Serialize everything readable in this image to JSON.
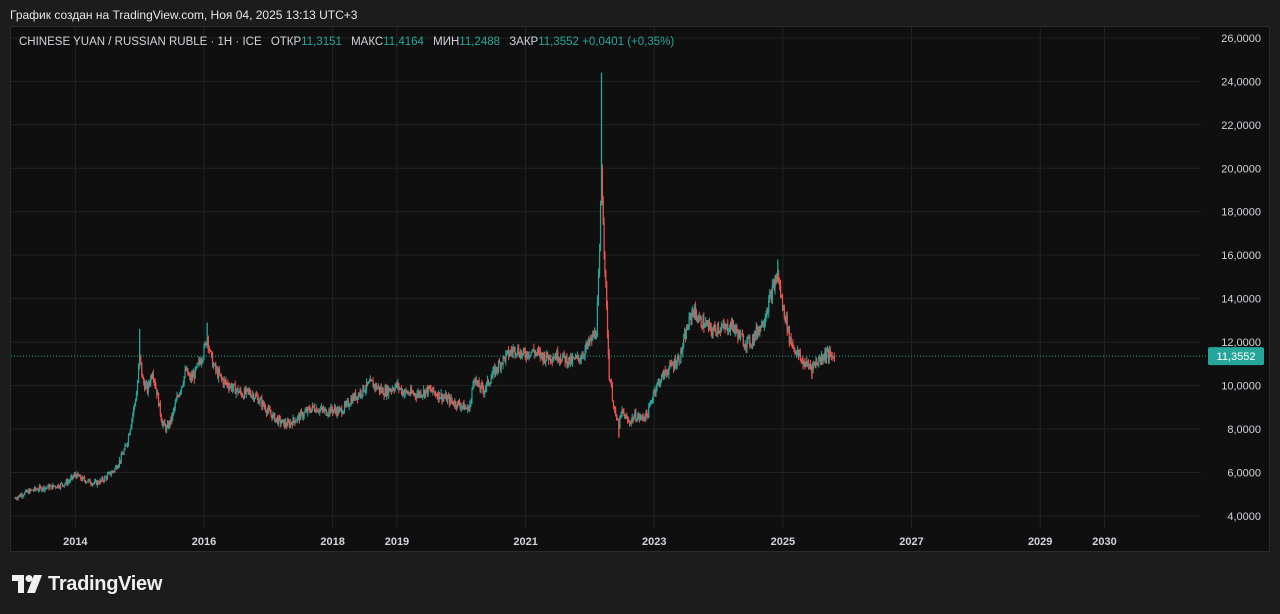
{
  "caption": "График создан на TradingView.com, Ноя 04, 2025 13:13 UTC+3",
  "legend": {
    "symbol": "CHINESE YUAN / RUSSIAN RUBLE · 1Н · ICE",
    "open_label": "ОТКР",
    "open": "11,3151",
    "high_label": "МАКС",
    "high": "11,4164",
    "low_label": "МИН",
    "low": "11,2488",
    "close_label": "ЗАКР",
    "close": "11,3552",
    "change": "+0,0401 (+0,35%)"
  },
  "brand": {
    "name": "TradingView",
    "icon": "tradingview-logo-icon"
  },
  "colors": {
    "background": "#0f0f0f",
    "up": "#26a69a",
    "down": "#ef5350",
    "grid": "#222222",
    "axis_text": "#d1d4dc",
    "price_line": "#26a69a"
  },
  "chart_data": {
    "type": "candlestick",
    "title": "CHINESE YUAN / RUSSIAN RUBLE · 1Н · ICE",
    "xlabel": "",
    "ylabel": "",
    "y_range": [
      3.4,
      26.5
    ],
    "x_range": [
      2013.0,
      2031.5
    ],
    "y_ticks": [
      4,
      6,
      8,
      10,
      12,
      14,
      16,
      18,
      20,
      22,
      24,
      26
    ],
    "y_tick_labels": [
      "4,0000",
      "6,0000",
      "8,0000",
      "10,0000",
      "12,0000",
      "14,0000",
      "16,0000",
      "18,0000",
      "20,0000",
      "22,0000",
      "24,0000",
      "26,0000"
    ],
    "x_ticks": [
      2014,
      2016,
      2018,
      2019,
      2021,
      2023,
      2025,
      2027,
      2029,
      2030
    ],
    "x_tick_labels": [
      "2014",
      "2016",
      "2018",
      "2019",
      "2021",
      "2023",
      "2025",
      "2027",
      "2029",
      "2030"
    ],
    "grid": true,
    "last_price": 11.3552,
    "last_price_label": "11,3552",
    "series": [
      {
        "points": [
          [
            2013.05,
            4.8
          ],
          [
            2013.2,
            5.05
          ],
          [
            2013.35,
            5.2
          ],
          [
            2013.5,
            5.3
          ],
          [
            2013.65,
            5.35
          ],
          [
            2013.8,
            5.45
          ],
          [
            2013.9,
            5.6
          ],
          [
            2014.0,
            5.9
          ],
          [
            2014.1,
            5.7
          ],
          [
            2014.2,
            5.6
          ],
          [
            2014.3,
            5.5
          ],
          [
            2014.4,
            5.6
          ],
          [
            2014.5,
            5.85
          ],
          [
            2014.6,
            6.1
          ],
          [
            2014.7,
            6.6
          ],
          [
            2014.8,
            7.3
          ],
          [
            2014.88,
            8.5
          ],
          [
            2014.95,
            9.6
          ],
          [
            2015.0,
            11.3
          ],
          [
            2015.05,
            10.2
          ],
          [
            2015.12,
            9.8
          ],
          [
            2015.2,
            10.7
          ],
          [
            2015.28,
            9.5
          ],
          [
            2015.35,
            8.3
          ],
          [
            2015.42,
            8.0
          ],
          [
            2015.5,
            8.5
          ],
          [
            2015.58,
            9.4
          ],
          [
            2015.65,
            10.0
          ],
          [
            2015.72,
            10.7
          ],
          [
            2015.78,
            10.3
          ],
          [
            2015.85,
            10.5
          ],
          [
            2015.92,
            11.0
          ],
          [
            2016.0,
            11.6
          ],
          [
            2016.05,
            12.3
          ],
          [
            2016.1,
            11.4
          ],
          [
            2016.15,
            10.9
          ],
          [
            2016.2,
            10.6
          ],
          [
            2016.3,
            10.2
          ],
          [
            2016.4,
            10.0
          ],
          [
            2016.5,
            9.8
          ],
          [
            2016.6,
            9.6
          ],
          [
            2016.7,
            9.7
          ],
          [
            2016.8,
            9.5
          ],
          [
            2016.9,
            9.2
          ],
          [
            2017.0,
            8.8
          ],
          [
            2017.1,
            8.5
          ],
          [
            2017.2,
            8.3
          ],
          [
            2017.3,
            8.2
          ],
          [
            2017.4,
            8.4
          ],
          [
            2017.5,
            8.6
          ],
          [
            2017.6,
            8.8
          ],
          [
            2017.7,
            9.0
          ],
          [
            2017.8,
            8.9
          ],
          [
            2017.9,
            8.8
          ],
          [
            2018.0,
            8.9
          ],
          [
            2018.1,
            8.8
          ],
          [
            2018.2,
            9.0
          ],
          [
            2018.3,
            9.4
          ],
          [
            2018.4,
            9.6
          ],
          [
            2018.5,
            9.9
          ],
          [
            2018.6,
            10.1
          ],
          [
            2018.7,
            9.9
          ],
          [
            2018.8,
            9.7
          ],
          [
            2019.0,
            10.0
          ],
          [
            2019.1,
            9.7
          ],
          [
            2019.3,
            9.6
          ],
          [
            2019.5,
            9.8
          ],
          [
            2019.7,
            9.5
          ],
          [
            2019.9,
            9.2
          ],
          [
            2020.0,
            9.1
          ],
          [
            2020.1,
            8.9
          ],
          [
            2020.15,
            9.3
          ],
          [
            2020.2,
            10.5
          ],
          [
            2020.25,
            10.0
          ],
          [
            2020.35,
            9.8
          ],
          [
            2020.45,
            10.3
          ],
          [
            2020.55,
            10.8
          ],
          [
            2020.65,
            11.2
          ],
          [
            2020.75,
            11.5
          ],
          [
            2020.85,
            11.7
          ],
          [
            2020.95,
            11.4
          ],
          [
            2021.1,
            11.6
          ],
          [
            2021.3,
            11.3
          ],
          [
            2021.5,
            11.4
          ],
          [
            2021.7,
            11.1
          ],
          [
            2021.85,
            11.3
          ],
          [
            2022.0,
            12.0
          ],
          [
            2022.1,
            12.5
          ],
          [
            2022.15,
            16.0
          ],
          [
            2022.18,
            20.0
          ],
          [
            2022.22,
            16.5
          ],
          [
            2022.26,
            13.5
          ],
          [
            2022.3,
            10.5
          ],
          [
            2022.35,
            9.5
          ],
          [
            2022.4,
            8.5
          ],
          [
            2022.45,
            8.2
          ],
          [
            2022.5,
            8.8
          ],
          [
            2022.6,
            8.3
          ],
          [
            2022.7,
            8.6
          ],
          [
            2022.8,
            8.5
          ],
          [
            2022.9,
            8.7
          ],
          [
            2023.0,
            9.8
          ],
          [
            2023.1,
            10.3
          ],
          [
            2023.2,
            10.7
          ],
          [
            2023.3,
            11.0
          ],
          [
            2023.4,
            11.3
          ],
          [
            2023.5,
            12.5
          ],
          [
            2023.6,
            13.5
          ],
          [
            2023.7,
            13.0
          ],
          [
            2023.8,
            12.8
          ],
          [
            2023.9,
            12.5
          ],
          [
            2024.0,
            12.7
          ],
          [
            2024.1,
            12.6
          ],
          [
            2024.2,
            12.8
          ],
          [
            2024.3,
            12.4
          ],
          [
            2024.4,
            12.0
          ],
          [
            2024.5,
            12.0
          ],
          [
            2024.6,
            12.5
          ],
          [
            2024.7,
            13.0
          ],
          [
            2024.78,
            13.8
          ],
          [
            2024.85,
            14.5
          ],
          [
            2024.92,
            15.1
          ],
          [
            2024.98,
            13.9
          ],
          [
            2025.05,
            13.0
          ],
          [
            2025.1,
            12.2
          ],
          [
            2025.2,
            11.6
          ],
          [
            2025.3,
            11.1
          ],
          [
            2025.4,
            10.9
          ],
          [
            2025.5,
            11.0
          ],
          [
            2025.6,
            11.3
          ],
          [
            2025.68,
            11.5
          ],
          [
            2025.75,
            11.3
          ],
          [
            2025.8,
            11.36
          ]
        ],
        "spikes": [
          [
            2015.0,
            12.6
          ],
          [
            2016.05,
            12.9
          ],
          [
            2022.18,
            24.4
          ],
          [
            2024.92,
            15.8
          ],
          [
            2022.45,
            7.6
          ],
          [
            2025.45,
            10.3
          ]
        ]
      }
    ]
  }
}
